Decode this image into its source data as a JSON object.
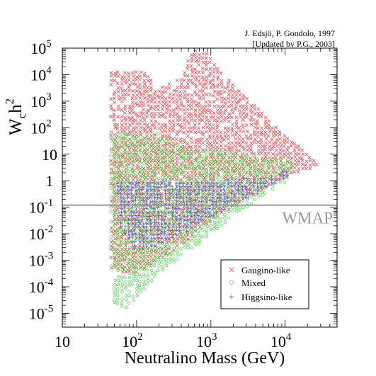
{
  "chart_data": {
    "type": "scatter",
    "credit": [
      "J. Edsjö, P. Gondolo, 1997",
      "[Updated by P.G., 2003]"
    ],
    "xlabel": "Neutralino Mass (GeV)",
    "ylabel": {
      "base": "W",
      "sub": "c",
      "mid": "h",
      "sup": "2"
    },
    "x_scale": "log",
    "y_scale": "log",
    "xlim": [
      10,
      50000
    ],
    "ylim": [
      3e-06,
      100000
    ],
    "x_ticks": [
      {
        "value": 10,
        "base": "10",
        "exp": ""
      },
      {
        "value": 100,
        "base": "10",
        "exp": "2"
      },
      {
        "value": 1000,
        "base": "10",
        "exp": "3"
      },
      {
        "value": 10000,
        "base": "10",
        "exp": "4"
      }
    ],
    "y_ticks": [
      {
        "value": 1e-05,
        "base": "10",
        "exp": "-5"
      },
      {
        "value": 0.0001,
        "base": "10",
        "exp": "-4"
      },
      {
        "value": 0.001,
        "base": "10",
        "exp": "-3"
      },
      {
        "value": 0.01,
        "base": "10",
        "exp": "-2"
      },
      {
        "value": 0.1,
        "base": "10",
        "exp": "-1"
      },
      {
        "value": 1,
        "base": "1",
        "exp": ""
      },
      {
        "value": 10,
        "base": "10",
        "exp": ""
      },
      {
        "value": 100,
        "base": "10",
        "exp": "2"
      },
      {
        "value": 1000,
        "base": "10",
        "exp": "3"
      },
      {
        "value": 10000,
        "base": "10",
        "exp": "4"
      },
      {
        "value": 100000,
        "base": "10",
        "exp": "5"
      }
    ],
    "reference_line": {
      "y": 0.12,
      "label": "WMAP",
      "color": "#9a9a9a"
    },
    "grid": false,
    "legend_position": "bottom-right",
    "series": [
      {
        "name": "Gaugino-like",
        "marker": "x",
        "color": "#e8474f",
        "region": [
          [
            45,
            0.0004
          ],
          [
            45,
            15000
          ],
          [
            130,
            15000
          ],
          [
            200,
            3000
          ],
          [
            400,
            8000
          ],
          [
            550,
            80000
          ],
          [
            900,
            80000
          ],
          [
            1200,
            20000
          ],
          [
            3000,
            1500
          ],
          [
            6000,
            200
          ],
          [
            30000,
            4
          ],
          [
            8000,
            1
          ],
          [
            1000,
            0.03
          ],
          [
            300,
            0.002
          ],
          [
            100,
            0.0003
          ]
        ]
      },
      {
        "name": "Mixed",
        "marker": "o",
        "color": "#3fcf3f",
        "region": [
          [
            45,
            0.0003
          ],
          [
            45,
            60
          ],
          [
            200,
            60
          ],
          [
            500,
            15
          ],
          [
            1500,
            15
          ],
          [
            6000,
            8
          ],
          [
            12000,
            6
          ],
          [
            14000,
            3
          ],
          [
            10000,
            0.8
          ],
          [
            3000,
            0.1
          ],
          [
            600,
            0.003
          ],
          [
            200,
            0.0003
          ],
          [
            70,
            1.5e-05
          ],
          [
            50,
            2e-05
          ]
        ]
      },
      {
        "name": "Higgsino-like",
        "marker": "+",
        "color": "#5a5ae6",
        "region": [
          [
            55,
            0.1
          ],
          [
            55,
            0.9
          ],
          [
            300,
            0.9
          ],
          [
            1000,
            1
          ],
          [
            4000,
            1.3
          ],
          [
            13000,
            3
          ],
          [
            10000,
            1.2
          ],
          [
            4000,
            0.3
          ],
          [
            1000,
            0.04
          ],
          [
            300,
            0.006
          ],
          [
            100,
            0.002
          ],
          [
            60,
            0.02
          ]
        ]
      }
    ]
  }
}
